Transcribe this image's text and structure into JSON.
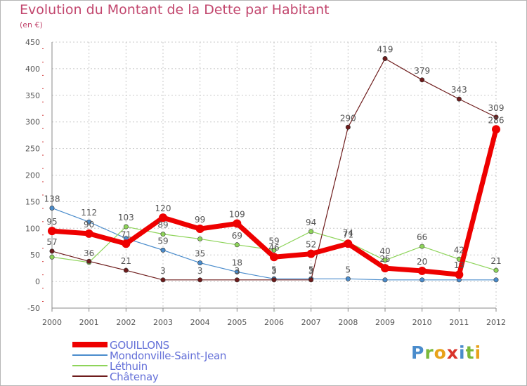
{
  "header": {
    "title": "Evolution du Montant de la Dette par Habitant",
    "subtitle": "(en €)"
  },
  "brand": {
    "text": "Proxiti"
  },
  "colors": {
    "title": "#c2476e",
    "axis_text": "#555555",
    "grid": "#c8c8c8",
    "legend_text": "#6470d8"
  },
  "chart_data": {
    "type": "line",
    "title": "Evolution du Montant de la Dette par Habitant",
    "subtitle": "(en €)",
    "xlabel": "",
    "ylabel": "",
    "x": [
      "2000",
      "2001",
      "2002",
      "2003",
      "2004",
      "2005",
      "2006",
      "2007",
      "2008",
      "2009",
      "2010",
      "2011",
      "2012"
    ],
    "ylim": [
      -50,
      450
    ],
    "yticks": [
      -50,
      0,
      50,
      100,
      150,
      200,
      250,
      300,
      350,
      400,
      450
    ],
    "grid": "horizontal dashed",
    "legend_position": "bottom-left",
    "series": [
      {
        "name": "GOUILLONS",
        "color": "#ee0000",
        "values": [
          95,
          90,
          71,
          120,
          99,
          109,
          46,
          52,
          71,
          25,
          20,
          13,
          286
        ],
        "labels": [
          "95",
          "90",
          "71",
          "120",
          "99",
          "109",
          "46",
          "52",
          "71",
          "25",
          "20",
          "13",
          "286"
        ]
      },
      {
        "name": "Mondonville-Saint-Jean",
        "color": "#4a8ccc",
        "values": [
          138,
          112,
          81,
          59,
          35,
          18,
          5,
          5,
          5,
          3,
          3,
          3,
          3
        ],
        "labels": [
          "138",
          "112",
          "",
          "59",
          "35",
          "18",
          "5",
          "5",
          "5",
          "",
          "",
          "",
          ""
        ]
      },
      {
        "name": "Léthuin",
        "color": "#8ed45a",
        "values": [
          46,
          36,
          103,
          89,
          80,
          69,
          59,
          94,
          74,
          40,
          66,
          42,
          21
        ],
        "labels": [
          "",
          "36",
          "103",
          "89",
          "",
          "69",
          "59",
          "94",
          "74",
          "40",
          "66",
          "42",
          "21"
        ]
      },
      {
        "name": "Châtenay",
        "color": "#6e1c1c",
        "values": [
          57,
          38,
          21,
          3,
          3,
          3,
          3,
          3,
          290,
          419,
          379,
          343,
          309
        ],
        "labels": [
          "57",
          "",
          "21",
          "3",
          "3",
          "3",
          "3",
          "3",
          "290",
          "419",
          "379",
          "343",
          "309"
        ]
      }
    ]
  }
}
